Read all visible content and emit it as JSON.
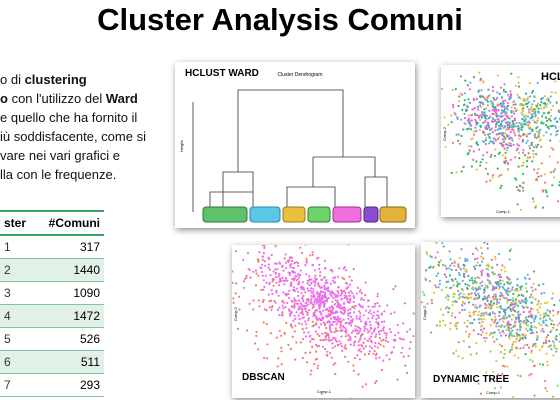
{
  "title": "Cluster Analysis Comuni",
  "intro": {
    "lines": [
      [
        {
          "text": "o di "
        },
        {
          "text": "clustering",
          "bold": true
        }
      ],
      [
        {
          "text": "o",
          "bold": true
        },
        {
          "text": " con l'utilizzo del "
        },
        {
          "text": "Ward",
          "bold": true
        }
      ],
      [
        {
          "text": "e quello che ha fornito il"
        }
      ],
      [
        {
          "text": "iù soddisfacente, come si"
        }
      ],
      [
        {
          "text": "vare nei vari grafici e"
        }
      ],
      [
        {
          "text": "lla con le frequenze."
        }
      ]
    ]
  },
  "table": {
    "header": [
      "ster",
      "#Comuni"
    ],
    "rows": [
      [
        "1",
        317
      ],
      [
        "2",
        1440
      ],
      [
        "3",
        1090
      ],
      [
        "4",
        1472
      ],
      [
        "5",
        526
      ],
      [
        "6",
        511
      ],
      [
        "7",
        293
      ]
    ]
  },
  "panels": {
    "dendrogram": {
      "label": "HCLUST WARD",
      "title": "Cluster Dendrogram",
      "y_label": "Height"
    },
    "hclust": {
      "label": "HCL",
      "x_label": "Comp.1",
      "y_label": "Comp.2"
    },
    "dbscan": {
      "label": "DBSCAN",
      "x_label": "Comp.1",
      "y_label": "Comp.2"
    },
    "dynamic": {
      "label": "DYNAMIC TREE",
      "x_label": "Comp.1",
      "y_label": "Comp.2"
    }
  }
}
